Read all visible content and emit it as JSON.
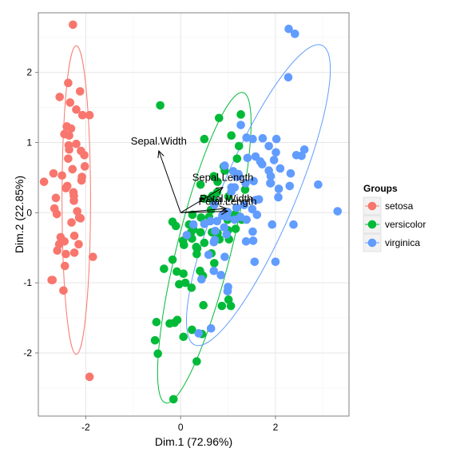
{
  "chart_data": {
    "type": "scatter",
    "xlabel": "Dim.1 (72.96%)",
    "ylabel": "Dim.2 (22.85%)",
    "xlim": [
      -3.0,
      3.55
    ],
    "ylim": [
      -2.9,
      2.85
    ],
    "x_ticks": [
      -2,
      0,
      2
    ],
    "y_ticks": [
      -2,
      -1,
      0,
      1,
      2
    ],
    "x_tick_labels": [
      "-2",
      "0",
      "2"
    ],
    "y_tick_labels": [
      "-2",
      "-1",
      "0",
      "1",
      "2"
    ],
    "grid": true,
    "legend_title": "Groups",
    "legend_position": "right",
    "series": [
      {
        "name": "setosa",
        "color": "#F8766D",
        "points": [
          [
            -2.27,
            2.68
          ],
          [
            -2.31,
            1.2
          ],
          [
            -2.07,
            1.39
          ],
          [
            -2.28,
            0.62
          ],
          [
            -2.35,
            1.1
          ],
          [
            -2.5,
            0.53
          ],
          [
            -2.11,
            -0.08
          ],
          [
            -2.45,
            -0.41
          ],
          [
            -2.7,
            -0.96
          ],
          [
            -1.92,
            -2.34
          ],
          [
            -2.6,
            -0.54
          ],
          [
            -2.2,
            0.98
          ],
          [
            -2.44,
            -0.76
          ],
          [
            -2.37,
            0.77
          ],
          [
            -2.24,
            -0.57
          ],
          [
            -2.63,
            0.21
          ],
          [
            -2.56,
            -0.45
          ],
          [
            -2.39,
            0.38
          ],
          [
            -2.09,
            0.46
          ],
          [
            -2.3,
            -0.14
          ],
          [
            -2.02,
            0.66
          ],
          [
            -2.14,
            -0.07
          ],
          [
            -2.42,
            0.35
          ],
          [
            -2.15,
            -0.45
          ],
          [
            -2.08,
            0.51
          ],
          [
            -2.88,
            0.44
          ],
          [
            -2.68,
            0.56
          ],
          [
            -2.53,
            -0.35
          ],
          [
            -2.72,
            -0.96
          ],
          [
            -2.24,
            -0.33
          ],
          [
            -2.4,
            1.23
          ],
          [
            -2.2,
            1.47
          ],
          [
            -2.33,
            1.57
          ],
          [
            -2.12,
            1.73
          ],
          [
            -2.37,
            1.85
          ],
          [
            -2.18,
            0.02
          ],
          [
            -2.25,
            0.17
          ],
          [
            -1.85,
            -0.63
          ],
          [
            -2.03,
            0.82
          ],
          [
            -2.42,
            -0.59
          ],
          [
            -2.61,
            -0.02
          ],
          [
            -2.26,
            0.29
          ],
          [
            -2.35,
            0.9
          ],
          [
            -2.45,
            1.12
          ],
          [
            -2.36,
            0.96
          ],
          [
            -2.47,
            -1.11
          ],
          [
            -2.55,
            1.65
          ],
          [
            -2.1,
            0.88
          ],
          [
            -1.92,
            1.39
          ],
          [
            -2.25,
            0.24
          ],
          [
            -2.66,
            0.06
          ]
        ]
      },
      {
        "name": "versicolor",
        "color": "#00BA38",
        "points": [
          [
            0.42,
            -0.28
          ],
          [
            1.07,
            1.1
          ],
          [
            1.27,
            1.4
          ],
          [
            0.81,
            1.35
          ],
          [
            0.7,
            0.52
          ],
          [
            0.5,
            1.05
          ],
          [
            -0.43,
            1.53
          ],
          [
            0.42,
            0.4
          ],
          [
            1.23,
            0.95
          ],
          [
            1.16,
            -0.23
          ],
          [
            0.93,
            0.6
          ],
          [
            1.36,
            0.33
          ],
          [
            1.02,
            -0.38
          ],
          [
            0.82,
            -0.38
          ],
          [
            0.62,
            -0.12
          ],
          [
            0.67,
            0.24
          ],
          [
            1.0,
            -0.25
          ],
          [
            0.78,
            -0.29
          ],
          [
            0.69,
            0.18
          ],
          [
            1.03,
            -0.08
          ],
          [
            0.25,
            -0.03
          ],
          [
            0.5,
            0.2
          ],
          [
            -0.17,
            -0.13
          ],
          [
            0.5,
            -0.43
          ],
          [
            0.07,
            -0.46
          ],
          [
            0.71,
            -0.72
          ],
          [
            -0.17,
            -0.67
          ],
          [
            0.1,
            -1.0
          ],
          [
            0.66,
            -0.28
          ],
          [
            0.34,
            -0.59
          ],
          [
            0.23,
            -1.07
          ],
          [
            -0.23,
            -1.58
          ],
          [
            -0.51,
            -1.56
          ],
          [
            -0.08,
            -0.84
          ],
          [
            -0.03,
            -1.02
          ],
          [
            0.48,
            -1.32
          ],
          [
            -0.07,
            -1.53
          ],
          [
            0.45,
            -1.73
          ],
          [
            0.24,
            -1.67
          ],
          [
            0.34,
            -2.12
          ],
          [
            1.06,
            -1.33
          ],
          [
            -0.15,
            -2.66
          ],
          [
            -0.48,
            -2.01
          ],
          [
            -0.54,
            -1.82
          ],
          [
            0.35,
            -0.51
          ],
          [
            0.22,
            -0.28
          ],
          [
            0.06,
            -1.77
          ],
          [
            0.47,
            -0.9
          ],
          [
            -0.13,
            -1.57
          ],
          [
            0.15,
            -0.33
          ],
          [
            0.65,
            -0.58
          ],
          [
            0.27,
            -0.24
          ],
          [
            0.87,
            -1.33
          ],
          [
            1.01,
            -1.24
          ],
          [
            0.6,
            -0.06
          ],
          [
            0.18,
            -0.17
          ],
          [
            -0.1,
            -0.19
          ],
          [
            0.06,
            -0.87
          ],
          [
            0.33,
            -0.49
          ],
          [
            0.68,
            0.17
          ],
          [
            0.99,
            -0.1
          ],
          [
            1.29,
            -0.1
          ],
          [
            1.19,
            0.77
          ],
          [
            0.41,
            -0.83
          ],
          [
            1.15,
            -0.02
          ],
          [
            0.05,
            -0.4
          ],
          [
            -0.35,
            -0.8
          ],
          [
            0.77,
            0.29
          ],
          [
            0.64,
            0.04
          ],
          [
            0.43,
            -0.07
          ],
          [
            0.24,
            -0.37
          ],
          [
            0.91,
            0.66
          ],
          [
            1.01,
            0.23
          ],
          [
            0.78,
            0.44
          ]
        ]
      },
      {
        "name": "virginica",
        "color": "#619CFF",
        "points": [
          [
            2.28,
            2.62
          ],
          [
            2.41,
            2.55
          ],
          [
            2.27,
            1.93
          ],
          [
            1.52,
            1.05
          ],
          [
            1.73,
            1.06
          ],
          [
            1.86,
            0.95
          ],
          [
            2.01,
            0.86
          ],
          [
            2.02,
            1.05
          ],
          [
            1.86,
            0.6
          ],
          [
            2.44,
            0.82
          ],
          [
            2.1,
            0.63
          ],
          [
            1.58,
            0.8
          ],
          [
            1.72,
            0.69
          ],
          [
            2.32,
            0.56
          ],
          [
            1.89,
            0.42
          ],
          [
            2.55,
            0.81
          ],
          [
            2.61,
            0.9
          ],
          [
            2.3,
            0.38
          ],
          [
            2.9,
            0.4
          ],
          [
            3.31,
            0.02
          ],
          [
            2.07,
            0.34
          ],
          [
            1.58,
            0.18
          ],
          [
            1.65,
            0.19
          ],
          [
            1.61,
            -0.03
          ],
          [
            1.9,
            0.52
          ],
          [
            2.06,
            0.22
          ],
          [
            1.54,
            0.45
          ],
          [
            1.41,
            0.78
          ],
          [
            1.23,
            0.52
          ],
          [
            1.18,
            0.51
          ],
          [
            1.37,
            0.42
          ],
          [
            2.38,
            -0.17
          ],
          [
            1.93,
            -0.17
          ],
          [
            1.53,
            -0.4
          ],
          [
            1.34,
            0.11
          ],
          [
            1.14,
            0.36
          ],
          [
            1.07,
            0.3
          ],
          [
            0.88,
            -0.04
          ],
          [
            0.98,
            -0.06
          ],
          [
            1.14,
            -0.1
          ],
          [
            0.72,
            -0.39
          ],
          [
            0.99,
            0.01
          ],
          [
            1.26,
            -0.06
          ],
          [
            1.38,
            -0.41
          ],
          [
            1.52,
            -0.27
          ],
          [
            1.39,
            -0.1
          ],
          [
            0.73,
            -0.26
          ],
          [
            0.77,
            -0.12
          ],
          [
            0.92,
            -0.21
          ],
          [
            1.18,
            0.07
          ],
          [
            0.63,
            -0.12
          ],
          [
            1.51,
            0.05
          ],
          [
            0.71,
            0.11
          ],
          [
            0.93,
            0.67
          ],
          [
            1.07,
            0.36
          ],
          [
            1.11,
            0.59
          ],
          [
            1.22,
            0.55
          ],
          [
            1.27,
            1.25
          ],
          [
            1.39,
            1.07
          ],
          [
            1.68,
            0.73
          ],
          [
            1.97,
            0.75
          ],
          [
            1.56,
            -0.7
          ],
          [
            1.9,
            0.42
          ],
          [
            0.93,
            -0.63
          ],
          [
            0.7,
            -0.83
          ],
          [
            0.99,
            -1.12
          ],
          [
            0.38,
            -1.72
          ],
          [
            1.0,
            -1.06
          ],
          [
            0.59,
            -0.6
          ],
          [
            0.44,
            -0.95
          ],
          [
            0.13,
            -0.32
          ],
          [
            0.27,
            -0.17
          ],
          [
            0.7,
            -0.42
          ],
          [
            0.5,
            -0.16
          ],
          [
            0.97,
            -0.31
          ],
          [
            0.64,
            -1.65
          ],
          [
            2.0,
            -0.7
          ],
          [
            0.85,
            -0.89
          ]
        ]
      }
    ],
    "ellipses": [
      {
        "group": "setosa",
        "color": "#F8766D",
        "cx": -2.2,
        "cy": 0.18,
        "rx": 0.3,
        "ry": 2.2,
        "angle": 0
      },
      {
        "group": "versicolor",
        "color": "#00BA38",
        "cx": 0.5,
        "cy": -0.5,
        "rx": 0.57,
        "ry": 2.28,
        "angle": 14
      },
      {
        "group": "virginica",
        "color": "#619CFF",
        "cx": 1.64,
        "cy": 0.25,
        "rx": 0.77,
        "ry": 2.32,
        "angle": 23
      }
    ],
    "variables": [
      {
        "label": "Sepal.Length",
        "x": 0.89,
        "y": 0.36
      },
      {
        "label": "Sepal.Width",
        "x": -0.46,
        "y": 0.88
      },
      {
        "label": "Petal.Length",
        "x": 0.99,
        "y": 0.02
      },
      {
        "label": "Petal.Width",
        "x": 0.96,
        "y": 0.06
      }
    ]
  }
}
